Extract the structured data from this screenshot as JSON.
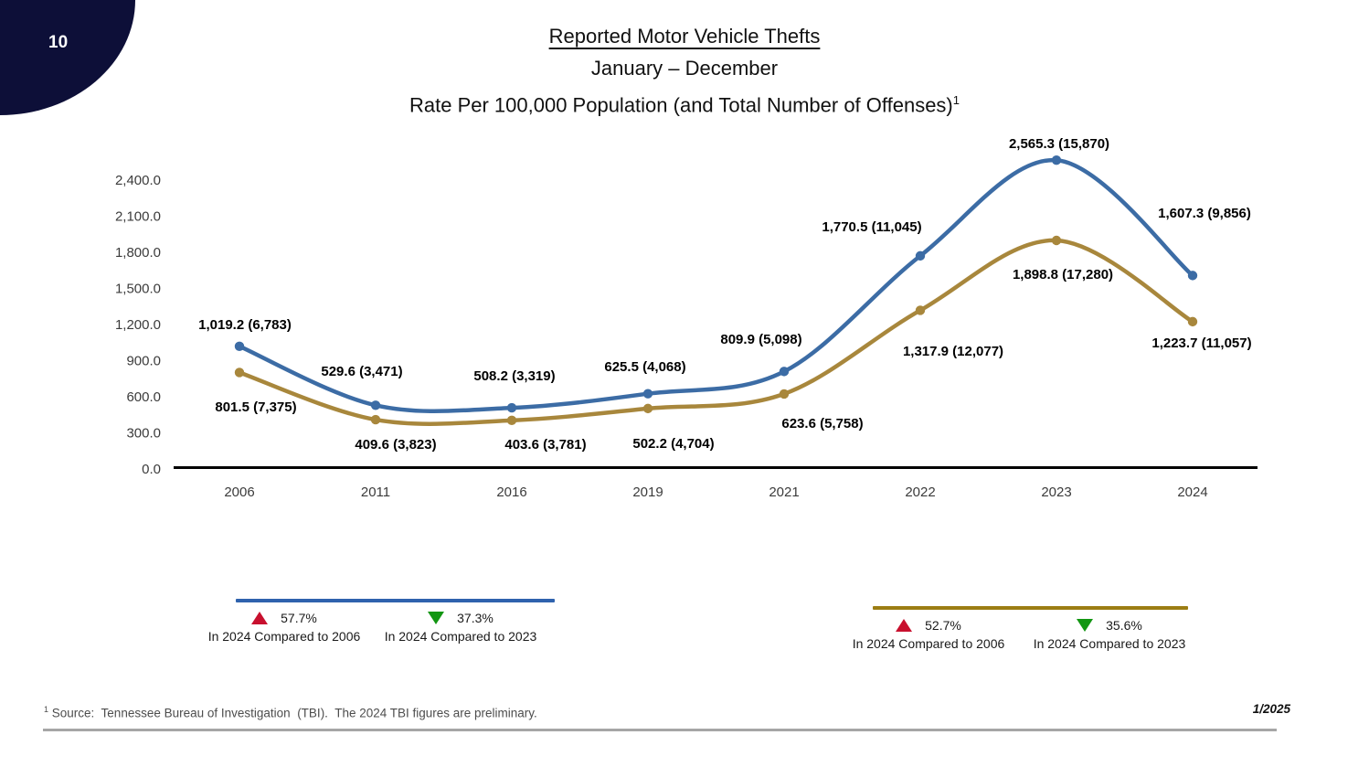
{
  "page": {
    "number": "10",
    "date": "1/2025"
  },
  "title": {
    "line1": "Reported Motor Vehicle Thefts",
    "line2": "January – December",
    "line3": "Rate Per 100,000 Population (and Total Number of Offenses)",
    "footnote_marker": "1"
  },
  "chart_data": {
    "type": "line",
    "title": "Reported Motor Vehicle Thefts — Rate Per 100,000 Population (and Total Number of Offenses)",
    "categories": [
      "2006",
      "2011",
      "2016",
      "2019",
      "2021",
      "2022",
      "2023",
      "2024"
    ],
    "series": [
      {
        "name": "Rate per 100,000 population (upper blue series)",
        "color": "#3c6ca5",
        "values": [
          1019.2,
          529.6,
          508.2,
          625.5,
          809.9,
          1770.5,
          2565.3,
          1607.3
        ],
        "offenses": [
          6783,
          3471,
          3319,
          4068,
          5098,
          11045,
          15870,
          9856
        ],
        "point_labels": [
          "1,019.2 (6,783)",
          "529.6 (3,471)",
          "508.2 (3,319)",
          "625.5 (4,068)",
          "809.9 (5,098)",
          "1,770.5 (11,045)",
          "2,565.3 (15,870)",
          "1,607.3 (9,856)"
        ]
      },
      {
        "name": "Rate per 100,000 population (lower gold series)",
        "color": "#a8873c",
        "values": [
          801.5,
          409.6,
          403.6,
          502.2,
          623.6,
          1317.9,
          1898.8,
          1223.7
        ],
        "offenses": [
          7375,
          3823,
          3781,
          4704,
          5758,
          12077,
          17280,
          11057
        ],
        "point_labels": [
          "801.5 (7,375)",
          "409.6 (3,823)",
          "403.6 (3,781)",
          "502.2 (4,704)",
          "623.6 (5,758)",
          "1,317.9 (12,077)",
          "1,898.8 (17,280)",
          "1,223.7 (11,057)"
        ]
      }
    ],
    "ylim": [
      0,
      2400
    ],
    "ytick_interval": 300,
    "ytick_labels": [
      "2,400.0",
      "2,100.0",
      "1,800.0",
      "1,500.0",
      "1,200.0",
      "900.0",
      "600.0",
      "300.0",
      "0.0"
    ],
    "xlabel": "",
    "ylabel": "",
    "grid": false,
    "smooth": true,
    "legend_position": "below-split"
  },
  "legends": {
    "blue": {
      "items": [
        {
          "direction": "up",
          "pct": "57.7%",
          "label": "In 2024 Compared to 2006"
        },
        {
          "direction": "down",
          "pct": "37.3%",
          "label": "In 2024 Compared to 2023"
        }
      ]
    },
    "gold": {
      "items": [
        {
          "direction": "up",
          "pct": "52.7%",
          "label": "In 2024 Compared to 2006"
        },
        {
          "direction": "down",
          "pct": "35.6%",
          "label": "In 2024 Compared to 2023"
        }
      ]
    }
  },
  "footer": {
    "marker": "1",
    "source": " Source:  Tennessee Bureau of Investigation  (TBI).  The 2024 TBI figures are preliminary."
  },
  "colors": {
    "blue_series": "#3c6ca5",
    "gold_series": "#a8873c",
    "blue_legend_line": "#2f62ad",
    "gold_legend_line": "#9c7d13",
    "up_triangle_red": "#c8102e",
    "down_triangle_green": "#129612",
    "corner_navy": "#0d0f38",
    "axis_black": "#000000",
    "tick_text": "#3b3b3b",
    "footer_rule_gray": "#a6a6a6"
  }
}
